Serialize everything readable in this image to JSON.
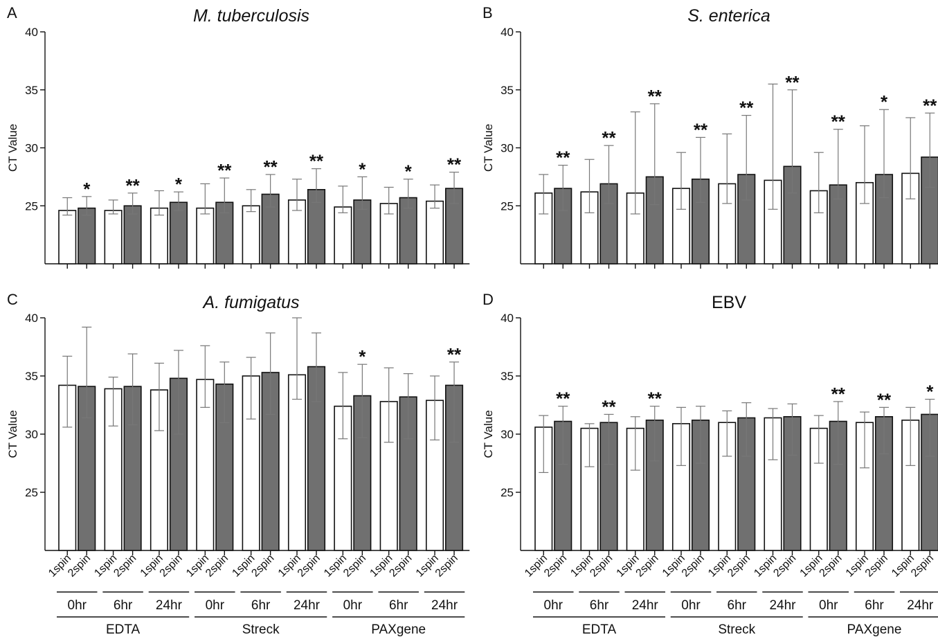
{
  "chart_data": [
    {
      "panel": "A",
      "type": "bar",
      "title": "M. tuberculosis",
      "title_italic": true,
      "ylabel": "CT Value",
      "ylim": [
        20,
        40
      ],
      "yticks": [
        "25",
        "30",
        "35",
        "40"
      ],
      "categories": [
        "1spin",
        "2spin",
        "1spin",
        "2spin",
        "1spin",
        "2spin",
        "1spin",
        "2spin",
        "1spin",
        "2spin",
        "1spin",
        "2spin",
        "1spin",
        "2spin",
        "1spin",
        "2spin",
        "1spin",
        "2spin"
      ],
      "time_groups": [
        "0hr",
        "6hr",
        "24hr",
        "0hr",
        "6hr",
        "24hr",
        "0hr",
        "6hr",
        "24hr"
      ],
      "tube_groups": [
        "EDTA",
        "Streck",
        "PAXgene"
      ],
      "values": [
        24.6,
        24.8,
        24.6,
        25.0,
        24.8,
        25.3,
        24.8,
        25.3,
        25.0,
        26.0,
        25.5,
        26.4,
        24.9,
        25.5,
        25.2,
        25.7,
        25.4,
        26.5
      ],
      "err_low": [
        24.2,
        24.2,
        24.3,
        24.3,
        24.2,
        24.6,
        24.3,
        24.4,
        24.5,
        24.9,
        24.6,
        25.3,
        24.4,
        24.7,
        24.3,
        24.8,
        24.8,
        25.2
      ],
      "err_high": [
        25.7,
        25.8,
        25.5,
        26.1,
        26.3,
        26.2,
        26.9,
        27.4,
        26.4,
        27.7,
        27.3,
        28.2,
        26.7,
        27.5,
        26.6,
        27.3,
        26.8,
        27.9
      ],
      "stars": [
        "",
        "*",
        "",
        "**",
        "",
        "*",
        "",
        "**",
        "",
        "**",
        "",
        "**",
        "",
        "*",
        "",
        "*",
        "",
        "**"
      ]
    },
    {
      "panel": "B",
      "type": "bar",
      "title": "S. enterica",
      "title_italic": true,
      "ylabel": "CT Value",
      "ylim": [
        20,
        40
      ],
      "yticks": [
        "25",
        "30",
        "35",
        "40"
      ],
      "categories": [
        "1spin",
        "2spin",
        "1spin",
        "2spin",
        "1spin",
        "2spin",
        "1spin",
        "2spin",
        "1spin",
        "2spin",
        "1spin",
        "2spin",
        "1spin",
        "2spin",
        "1spin",
        "2spin",
        "1spin",
        "2spin"
      ],
      "time_groups": [
        "0hr",
        "6hr",
        "24hr",
        "0hr",
        "6hr",
        "24hr",
        "0hr",
        "6hr",
        "24hr"
      ],
      "tube_groups": [
        "EDTA",
        "Streck",
        "PAXgene"
      ],
      "values": [
        26.1,
        26.5,
        26.2,
        26.9,
        26.1,
        27.5,
        26.5,
        27.3,
        26.9,
        27.7,
        27.2,
        28.4,
        26.3,
        26.8,
        27.0,
        27.7,
        27.8,
        29.2
      ],
      "err_low": [
        24.3,
        24.6,
        24.4,
        25.2,
        24.3,
        25.1,
        24.7,
        25.3,
        25.2,
        25.5,
        24.7,
        26.1,
        24.4,
        25.6,
        25.2,
        25.7,
        25.6,
        26.6
      ],
      "err_high": [
        27.7,
        28.5,
        29.0,
        30.2,
        33.1,
        33.8,
        29.6,
        30.9,
        31.2,
        32.8,
        35.5,
        35.0,
        29.6,
        31.6,
        31.9,
        33.3,
        32.6,
        33.0
      ],
      "stars": [
        "",
        "**",
        "",
        "**",
        "",
        "**",
        "",
        "**",
        "",
        "**",
        "",
        "**",
        "",
        "**",
        "",
        "*",
        "",
        "**"
      ]
    },
    {
      "panel": "C",
      "type": "bar",
      "title": "A. fumigatus",
      "title_italic": true,
      "ylabel": "CT Value",
      "ylim": [
        20,
        40
      ],
      "yticks": [
        "25",
        "30",
        "35",
        "40"
      ],
      "categories": [
        "1spin",
        "2spin",
        "1spin",
        "2spin",
        "1spin",
        "2spin",
        "1spin",
        "2spin",
        "1spin",
        "2spin",
        "1spin",
        "2spin",
        "1spin",
        "2spin",
        "1spin",
        "2spin",
        "1spin",
        "2spin"
      ],
      "time_groups": [
        "0hr",
        "6hr",
        "24hr",
        "0hr",
        "6hr",
        "24hr",
        "0hr",
        "6hr",
        "24hr"
      ],
      "tube_groups": [
        "EDTA",
        "Streck",
        "PAXgene"
      ],
      "values": [
        34.2,
        34.1,
        33.9,
        34.1,
        33.8,
        34.8,
        34.7,
        34.3,
        35.0,
        35.3,
        35.1,
        35.8,
        32.4,
        33.3,
        32.8,
        33.2,
        32.9,
        34.2
      ],
      "err_low": [
        30.6,
        31.4,
        30.7,
        30.8,
        30.3,
        30.0,
        32.3,
        31.0,
        31.3,
        31.7,
        33.0,
        32.8,
        29.6,
        29.7,
        29.3,
        29.6,
        29.5,
        29.3
      ],
      "err_high": [
        36.7,
        39.2,
        34.9,
        36.9,
        36.1,
        37.2,
        37.6,
        36.2,
        36.6,
        38.7,
        40.0,
        38.7,
        35.3,
        36.0,
        35.7,
        35.2,
        35.0,
        36.2
      ],
      "stars": [
        "",
        "",
        "",
        "",
        "",
        "",
        "",
        "",
        "",
        "",
        "",
        "",
        "",
        "*",
        "",
        "",
        "",
        "**"
      ]
    },
    {
      "panel": "D",
      "type": "bar",
      "title": "EBV",
      "title_italic": false,
      "ylabel": "CT Value",
      "ylim": [
        20,
        40
      ],
      "yticks": [
        "25",
        "30",
        "35",
        "40"
      ],
      "categories": [
        "1spin",
        "2spin",
        "1spin",
        "2spin",
        "1spin",
        "2spin",
        "1spin",
        "2spin",
        "1spin",
        "2spin",
        "1spin",
        "2spin",
        "1spin",
        "2spin",
        "1spin",
        "2spin",
        "1spin",
        "2spin"
      ],
      "time_groups": [
        "0hr",
        "6hr",
        "24hr",
        "0hr",
        "6hr",
        "24hr",
        "0hr",
        "6hr",
        "24hr"
      ],
      "tube_groups": [
        "EDTA",
        "Streck",
        "PAXgene"
      ],
      "values": [
        30.6,
        31.1,
        30.5,
        31.0,
        30.5,
        31.2,
        30.9,
        31.2,
        31.0,
        31.4,
        31.4,
        31.5,
        30.5,
        31.1,
        31.0,
        31.5,
        31.2,
        31.7
      ],
      "err_low": [
        26.7,
        27.4,
        27.2,
        27.4,
        26.9,
        27.7,
        27.3,
        27.5,
        28.1,
        28.1,
        27.8,
        28.2,
        27.5,
        27.4,
        27.1,
        28.3,
        27.3,
        28.1
      ],
      "err_high": [
        31.6,
        32.4,
        30.9,
        31.7,
        31.5,
        32.4,
        32.3,
        32.4,
        32.0,
        32.7,
        32.2,
        32.6,
        31.6,
        32.8,
        31.9,
        32.3,
        32.3,
        33.0
      ],
      "stars": [
        "",
        "**",
        "",
        "**",
        "",
        "**",
        "",
        "",
        "",
        "",
        "",
        "",
        "",
        "**",
        "",
        "**",
        "",
        "*"
      ]
    }
  ]
}
